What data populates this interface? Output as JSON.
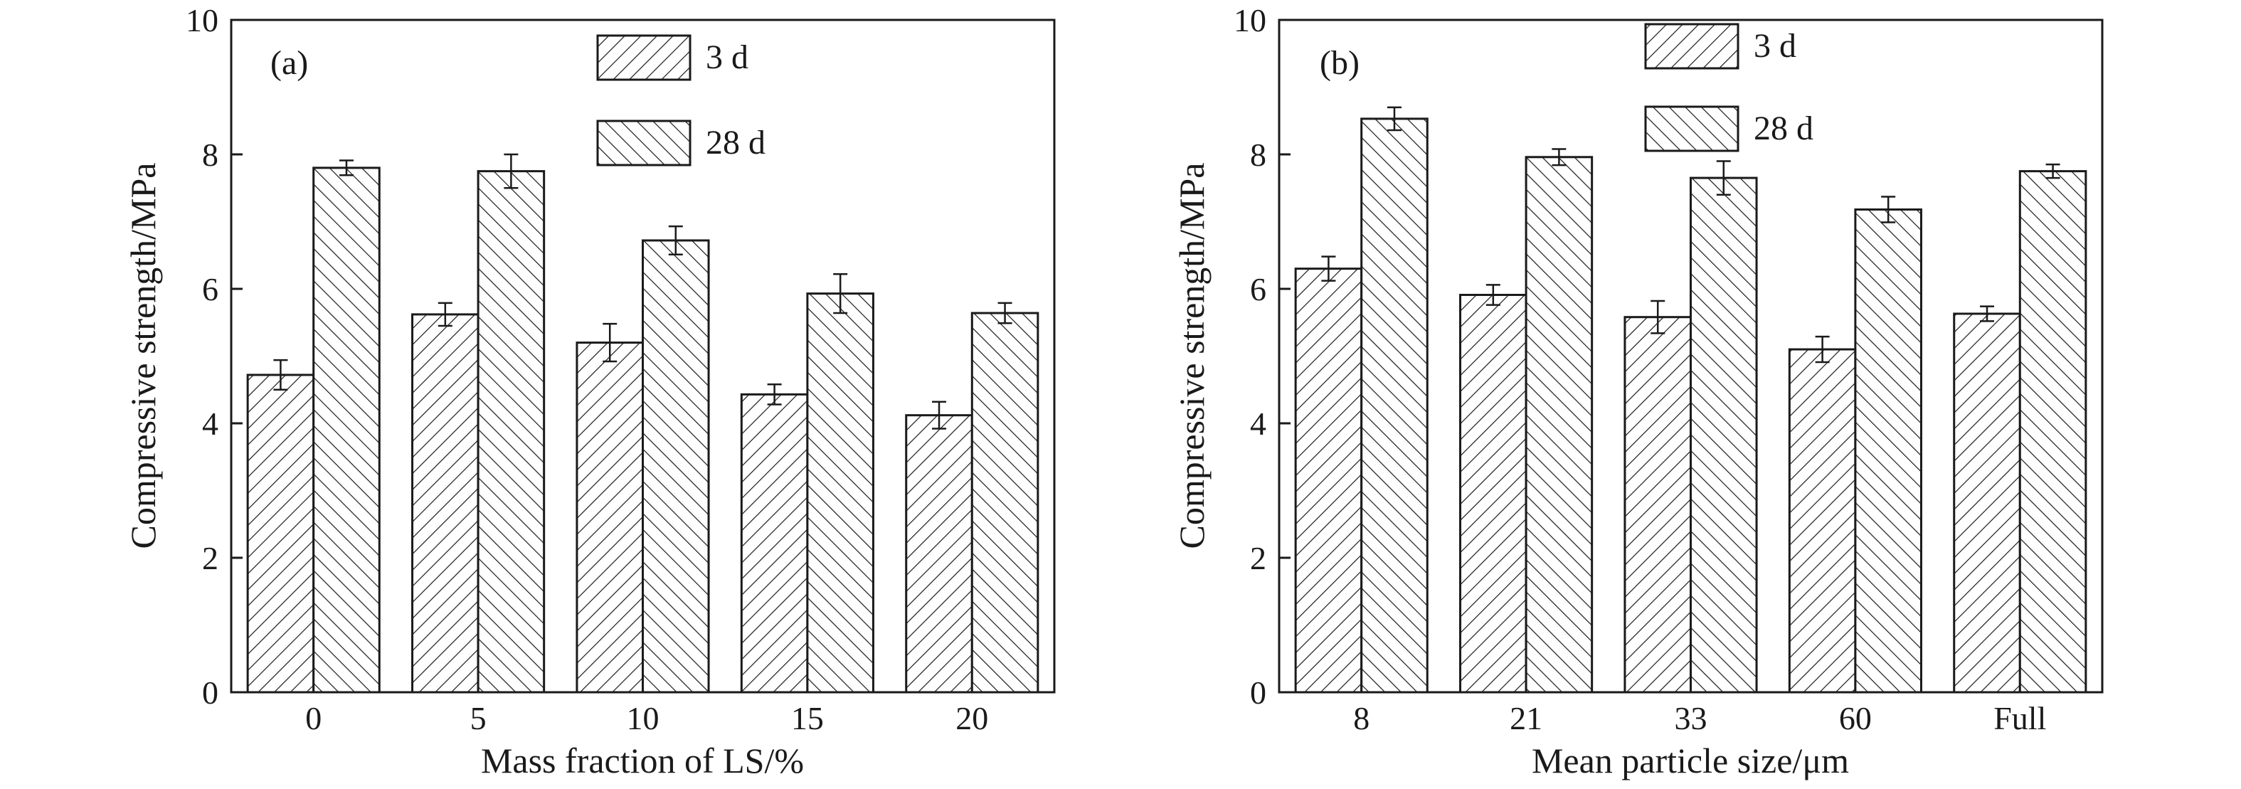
{
  "colors": {
    "ink": "#1a1a1a",
    "background": "#ffffff"
  },
  "chart_data": [
    {
      "type": "bar",
      "panel_label": "(a)",
      "xlabel": "Mass fraction of LS/%",
      "ylabel": "Compressive strength/MPa",
      "categories": [
        "0",
        "5",
        "10",
        "15",
        "20"
      ],
      "ylim": [
        0,
        10
      ],
      "yticks": [
        "0",
        "2",
        "4",
        "6",
        "8",
        "10"
      ],
      "grid": false,
      "legend_position": "top-center",
      "series": [
        {
          "name": "3 d",
          "hatch": "forward-diagonal",
          "values": [
            4.72,
            5.62,
            5.2,
            4.43,
            4.12
          ],
          "errors": [
            0.22,
            0.17,
            0.28,
            0.15,
            0.2
          ]
        },
        {
          "name": "28 d",
          "hatch": "back-diagonal",
          "values": [
            7.8,
            7.75,
            6.72,
            5.93,
            5.64
          ],
          "errors": [
            0.11,
            0.25,
            0.21,
            0.29,
            0.15
          ]
        }
      ]
    },
    {
      "type": "bar",
      "panel_label": "(b)",
      "xlabel": "Mean particle size/μm",
      "ylabel": "Compressive strength/MPa",
      "categories": [
        "8",
        "21",
        "33",
        "60",
        "Full"
      ],
      "ylim": [
        0,
        10
      ],
      "yticks": [
        "0",
        "2",
        "4",
        "6",
        "8",
        "10"
      ],
      "grid": false,
      "legend_position": "top-center",
      "series": [
        {
          "name": "3 d",
          "hatch": "forward-diagonal",
          "values": [
            6.3,
            5.91,
            5.58,
            5.1,
            5.63
          ],
          "errors": [
            0.18,
            0.15,
            0.24,
            0.19,
            0.11
          ]
        },
        {
          "name": "28 d",
          "hatch": "back-diagonal",
          "values": [
            8.53,
            7.96,
            7.65,
            7.18,
            7.75
          ],
          "errors": [
            0.17,
            0.12,
            0.25,
            0.19,
            0.1
          ]
        }
      ]
    }
  ]
}
